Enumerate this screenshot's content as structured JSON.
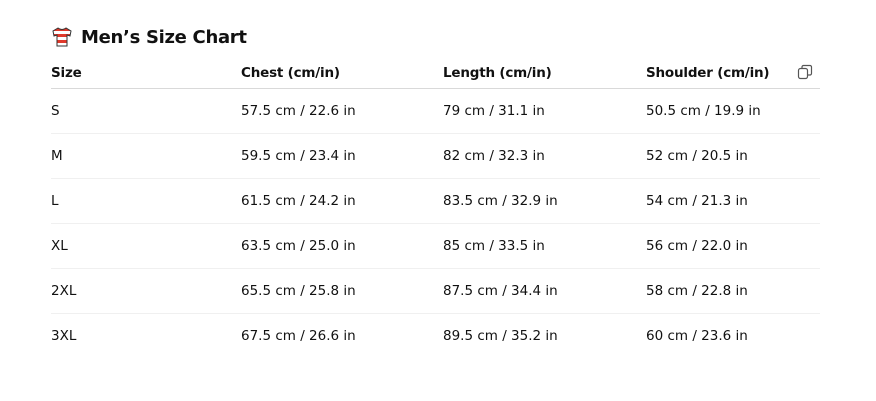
{
  "title": {
    "icon": "t-shirt-icon",
    "text": "Men’s Size Chart"
  },
  "table": {
    "headers": [
      "Size",
      "Chest (cm/in)",
      "Length (cm/in)",
      "Shoulder (cm/in)"
    ],
    "rows": [
      [
        "S",
        "57.5 cm / 22.6 in",
        "79 cm / 31.1 in",
        "50.5 cm / 19.9 in"
      ],
      [
        "M",
        "59.5 cm / 23.4 in",
        "82 cm / 32.3 in",
        "52 cm / 20.5 in"
      ],
      [
        "L",
        "61.5 cm / 24.2 in",
        "83.5 cm / 32.9 in",
        "54 cm / 21.3 in"
      ],
      [
        "XL",
        "63.5 cm / 25.0 in",
        "85 cm / 33.5 in",
        "56 cm / 22.0 in"
      ],
      [
        "2XL",
        "65.5 cm / 25.8 in",
        "87.5 cm / 34.4 in",
        "58 cm / 22.8 in"
      ],
      [
        "3XL",
        "67.5 cm / 26.6 in",
        "89.5 cm / 35.2 in",
        "60 cm / 23.6 in"
      ]
    ]
  },
  "copy_button": {
    "icon": "copy-icon"
  }
}
